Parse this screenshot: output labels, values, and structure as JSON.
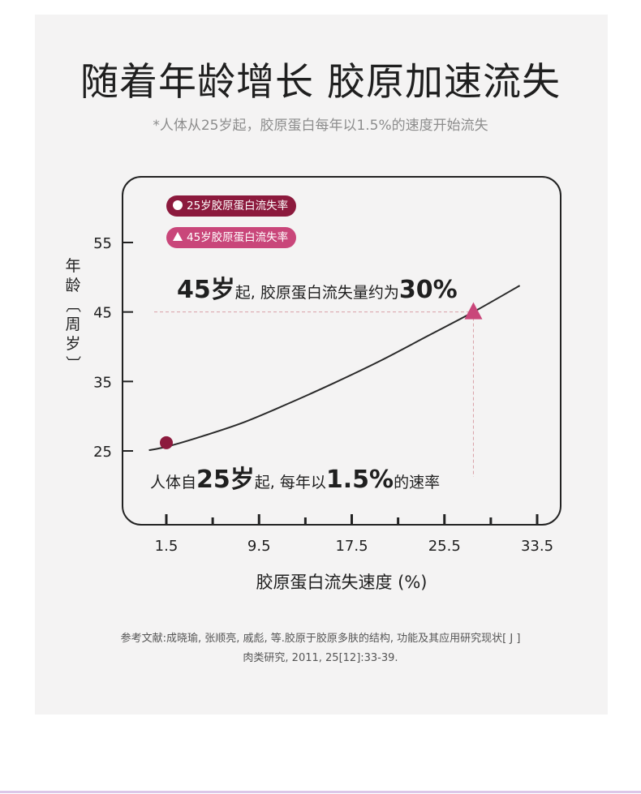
{
  "header": {
    "title": "随着年龄增长 胶原加速流失",
    "subtitle": "*人体从25岁起，胶原蛋白每年以1.5%的速度开始流失"
  },
  "legend": [
    {
      "label": "25岁胶原蛋白流失率",
      "marker": "circle",
      "color": "#8c1a3d"
    },
    {
      "label": "45岁胶原蛋白流失率",
      "marker": "triangle",
      "color": "#c9467a"
    }
  ],
  "callouts": {
    "c1": {
      "big": "45岁",
      "rest": "起, 胶原蛋白流失量约为",
      "big2": "30%"
    },
    "c2": {
      "pre": "人体自",
      "big": "25岁",
      "mid": "起, 每年以",
      "big2": "1.5%",
      "post": "的速率"
    }
  },
  "reference": {
    "line1": "参考文献:成晓瑜, 张顺亮, 戚彪, 等.胶原于胶原多肤的结构, 功能及其应用研究现状[ J ]",
    "line2": "肉类研究, 2011, 25[12]:33-39."
  },
  "chart_data": {
    "type": "line",
    "title": "随着年龄增长 胶原加速流失",
    "xlabel": "胶原蛋白流失速度 (%)",
    "ylabel": "年龄〔周岁〕",
    "x_ticks": [
      1.5,
      9.5,
      17.5,
      25.5,
      33.5
    ],
    "x_tick_labels": [
      "1.5",
      "9.5",
      "17.5",
      "25.5",
      "33.5"
    ],
    "y_ticks": [
      25,
      35,
      45,
      55
    ],
    "y_tick_labels": [
      "25",
      "35",
      "45",
      "55"
    ],
    "xlim": [
      1.5,
      33.5
    ],
    "ylim": [
      25,
      55
    ],
    "series": [
      {
        "x": [
          0,
          1.5,
          4,
          8,
          12,
          16,
          20,
          24,
          28,
          32
        ],
        "y": [
          25.1,
          25.6,
          26.8,
          29.0,
          31.8,
          34.8,
          38.0,
          41.5,
          45.0,
          48.8
        ]
      }
    ],
    "markers": [
      {
        "x": 1.5,
        "y": 25.6,
        "shape": "circle",
        "color": "#8c1a3d"
      },
      {
        "x": 28,
        "y": 45,
        "shape": "triangle",
        "color": "#c9467a"
      }
    ],
    "guide_lines": {
      "x": 28,
      "y": 45,
      "color": "#d9a0a6"
    },
    "line_color": "#2a2a2a",
    "grid": false
  }
}
